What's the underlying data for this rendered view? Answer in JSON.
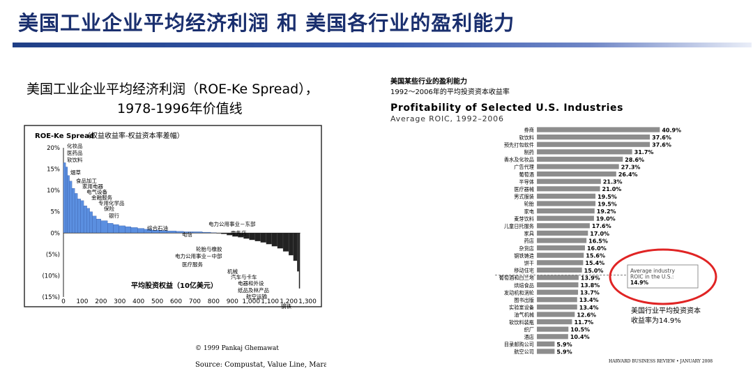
{
  "slide": {
    "title": "美国工业企业平均经济利润 和 美国各行业的盈利能力",
    "colors": {
      "title": "#1a2f6e",
      "bar_positive": "#5b8fe0",
      "bar_negative": "#222222",
      "roic_bar": "#8d8d8d",
      "highlight_ring": "#e02424"
    }
  },
  "left_panel": {
    "heading": "美国工业企业平均经济利润（ROE-Ke Spread），",
    "subheading": "1978-1996年价值线",
    "copyright": "© 1999 Pankaj Ghemawat",
    "source": "Source: Compustat, Value Line, Marakon Associates Analysis"
  },
  "right_panel": {
    "cn_title": "美国某些行业的盈利能力",
    "cn_subtitle": "1992～2006年的平均投资资本收益率",
    "footer": "HARVARD BUSINESS REVIEW • JANUARY 2008",
    "note_line1": "美国行业平均投资资本",
    "note_line2": "收益率为14.9%"
  },
  "chart_data": [
    {
      "type": "area",
      "title": "ROE-Ke Spread",
      "subtitle": "（权益收益率-权益资本率差幅）",
      "xlabel": "平均股资权益（10亿美元）",
      "xlim": [
        0,
        1300
      ],
      "ylim": [
        -15,
        20
      ],
      "x_ticks": [
        "0",
        "100",
        "200",
        "300",
        "400",
        "500",
        "600",
        "700",
        "800",
        "900",
        "1,000",
        "1,100",
        "1,200",
        "1,300"
      ],
      "y_ticks": [
        "20%",
        "15%",
        "10%",
        "5%",
        "0%",
        "(5%)",
        "(10%)",
        "(15%)"
      ],
      "series": [
        {
          "values": [
            [
              0,
              16.5
            ],
            [
              12,
              15.5
            ],
            [
              22,
              13.5
            ],
            [
              32,
              12.2
            ],
            [
              45,
              10.5
            ],
            [
              60,
              9.3
            ],
            [
              75,
              8.0
            ],
            [
              92,
              7.6
            ],
            [
              108,
              6.4
            ],
            [
              125,
              5.8
            ],
            [
              140,
              5.0
            ],
            [
              155,
              4.0
            ],
            [
              175,
              3.3
            ],
            [
              200,
              2.9
            ],
            [
              235,
              2.3
            ],
            [
              265,
              2.0
            ],
            [
              295,
              1.7
            ],
            [
              330,
              1.5
            ],
            [
              360,
              1.3
            ],
            [
              395,
              1.1
            ],
            [
              430,
              0.9
            ],
            [
              470,
              0.7
            ],
            [
              510,
              0.6
            ],
            [
              550,
              0.5
            ],
            [
              600,
              0.4
            ],
            [
              640,
              0.3
            ],
            [
              690,
              0.3
            ],
            [
              740,
              0.2
            ],
            [
              785,
              0.1
            ],
            [
              815,
              0.0
            ]
          ]
        },
        {
          "values": [
            [
              815,
              0.0
            ],
            [
              840,
              -0.2
            ],
            [
              870,
              -0.5
            ],
            [
              900,
              -0.8
            ],
            [
              930,
              -1.0
            ],
            [
              960,
              -1.3
            ],
            [
              990,
              -1.6
            ],
            [
              1020,
              -1.9
            ],
            [
              1050,
              -2.2
            ],
            [
              1080,
              -2.6
            ],
            [
              1110,
              -3.1
            ],
            [
              1140,
              -3.6
            ],
            [
              1170,
              -4.3
            ],
            [
              1200,
              -5.2
            ],
            [
              1225,
              -6.5
            ],
            [
              1245,
              -9.0
            ],
            [
              1255,
              -13.0
            ],
            [
              1260,
              -14.0
            ]
          ]
        }
      ],
      "annotations": [
        "化妆品",
        "医药品",
        "软饮料",
        "烟草",
        "食品加工",
        "家用电器",
        "电气设备",
        "金融服务",
        "专用化学品",
        "保险",
        "银行",
        "综合石油",
        "电信",
        "电力公用事业－东部",
        "零售店",
        "轮胎与橡胶",
        "电力公用事业－中部",
        "医疗服务",
        "机械",
        "汽车与卡车",
        "电器和外设",
        "纸品及林产品",
        "航空运输",
        "钢铁"
      ],
      "grid": false,
      "legend": "none"
    },
    {
      "type": "bar",
      "title": "Profitability of Selected U.S. Industries",
      "subtitle": "Average ROIC, 1992–2006",
      "categories": [
        "券商",
        "软饮料",
        "预先打包软件",
        "制药",
        "香水及化妆品",
        "广告代理",
        "葡萄酒",
        "半导体",
        "医疗器械",
        "男式服装",
        "轮胎",
        "家电",
        "麦芽饮料",
        "儿童日托服务",
        "家具",
        "药店",
        "杂货店",
        "钢铁铸造",
        "饼干",
        "移动住宅",
        "葡萄酒和白兰地",
        "烘焙食品",
        "发动机和涡轮",
        "图书出版",
        "实验室设备",
        "油气机械",
        "软饮料装瓶",
        "织厂",
        "酒店",
        "目录邮购公司",
        "航空公司"
      ],
      "values": [
        40.9,
        37.6,
        37.6,
        31.7,
        28.6,
        27.3,
        26.4,
        21.3,
        21.0,
        19.5,
        19.5,
        19.2,
        19.0,
        17.6,
        17.0,
        16.5,
        16.0,
        15.6,
        15.4,
        15.0,
        13.9,
        13.8,
        13.7,
        13.4,
        13.4,
        12.6,
        11.7,
        10.5,
        10.4,
        5.9,
        5.9
      ],
      "labels": [
        "40.9%",
        "37.6%",
        "37.6%",
        "31.7%",
        "28.6%",
        "27.3%",
        "26.4%",
        "21.3%",
        "21.0%",
        "19.5%",
        "19.5%",
        "19.2%",
        "19.0%",
        "17.6%",
        "17.0%",
        "16.5%",
        "16.0%",
        "15.6%",
        "15.4%",
        "15.0%",
        "13.9%",
        "13.8%",
        "13.7%",
        "13.4%",
        "13.4%",
        "12.6%",
        "11.7%",
        "10.5%",
        "10.4%",
        "5.9%",
        "5.9%"
      ],
      "reference_line": {
        "value": 14.9,
        "label_lines": [
          "Average industry",
          "ROIC in the U.S.:",
          "14.9%"
        ]
      },
      "xlim": [
        0,
        45
      ],
      "grid": false,
      "legend": "none"
    }
  ]
}
